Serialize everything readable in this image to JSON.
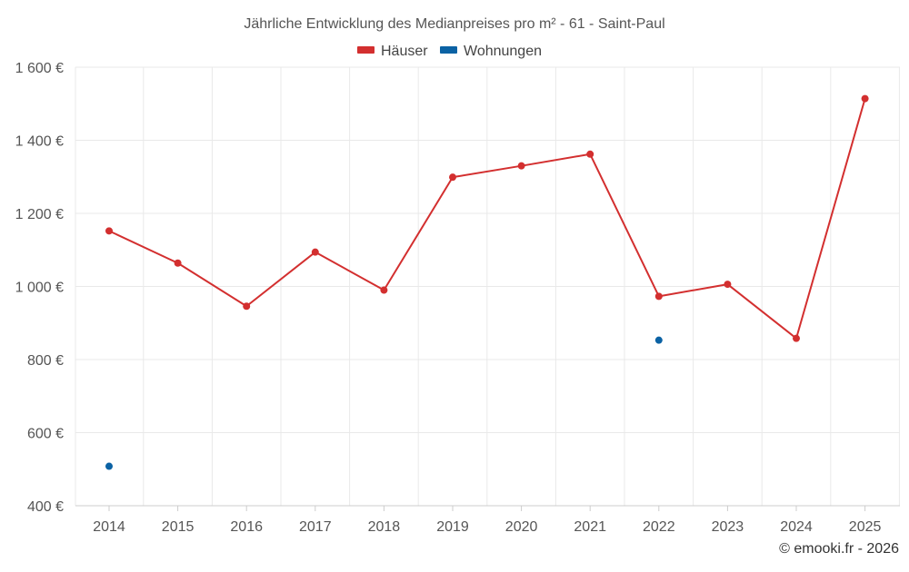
{
  "chart_data": {
    "type": "line",
    "title": "Jährliche Entwicklung des Medianpreises pro m² - 61 - Saint-Paul",
    "categories": [
      "2014",
      "2015",
      "2016",
      "2017",
      "2018",
      "2019",
      "2020",
      "2021",
      "2022",
      "2023",
      "2024",
      "2025"
    ],
    "ylim": [
      400,
      1600
    ],
    "yticks": [
      400,
      600,
      800,
      1000,
      1200,
      1400,
      1600
    ],
    "ytick_labels": [
      "400 €",
      "600 €",
      "800 €",
      "1 000 €",
      "1 200 €",
      "1 400 €",
      "1 600 €"
    ],
    "grid": true,
    "legend_position": "top-center",
    "series": [
      {
        "name": "Häuser",
        "color": "#d32f2f",
        "values": [
          1152,
          1064,
          946,
          1094,
          990,
          1299,
          1330,
          1362,
          973,
          1006,
          858,
          1514
        ]
      },
      {
        "name": "Wohnungen",
        "color": "#0b62a4",
        "values": [
          508,
          null,
          null,
          null,
          null,
          null,
          null,
          null,
          853,
          null,
          null,
          null
        ]
      }
    ]
  },
  "credit": "© emooki.fr - 2026"
}
